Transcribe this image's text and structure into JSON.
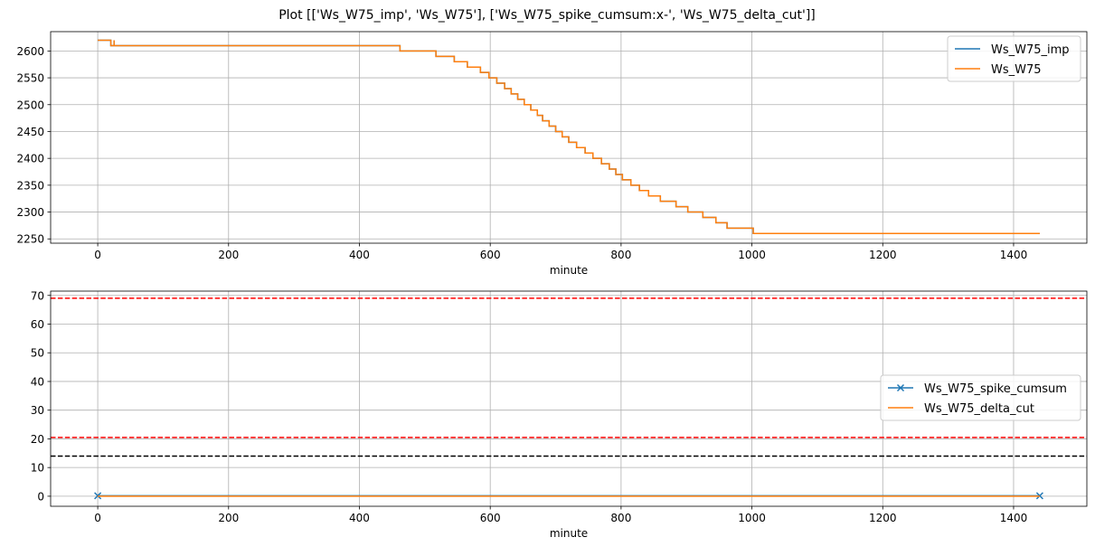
{
  "figure": {
    "title": "Plot [['Ws_W75_imp', 'Ws_W75'], ['Ws_W75_spike_cumsum:x-', 'Ws_W75_delta_cut']]"
  },
  "chart_data": [
    {
      "type": "line",
      "xlabel": "minute",
      "ylabel": "",
      "xlim": [
        -72,
        1512
      ],
      "ylim": [
        2242,
        2636
      ],
      "xticks": [
        0,
        200,
        400,
        600,
        800,
        1000,
        1200,
        1400
      ],
      "yticks": [
        2250,
        2300,
        2350,
        2400,
        2450,
        2500,
        2550,
        2600
      ],
      "grid": true,
      "legend_position": "upper right",
      "series": [
        {
          "name": "Ws_W75_imp",
          "color": "#1f77b4",
          "style": "step",
          "points": [
            [
              0,
              2620
            ],
            [
              20,
              2620
            ],
            [
              20,
              2610
            ],
            [
              25,
              2610
            ],
            [
              25,
              2620
            ],
            [
              25,
              2610
            ],
            [
              462,
              2610
            ],
            [
              462,
              2600
            ],
            [
              517,
              2600
            ],
            [
              517,
              2590
            ],
            [
              545,
              2590
            ],
            [
              545,
              2580
            ],
            [
              565,
              2580
            ],
            [
              565,
              2570
            ],
            [
              585,
              2570
            ],
            [
              585,
              2560
            ],
            [
              598,
              2560
            ],
            [
              598,
              2550
            ],
            [
              610,
              2550
            ],
            [
              610,
              2540
            ],
            [
              622,
              2540
            ],
            [
              622,
              2530
            ],
            [
              632,
              2530
            ],
            [
              632,
              2520
            ],
            [
              642,
              2520
            ],
            [
              642,
              2510
            ],
            [
              652,
              2510
            ],
            [
              652,
              2500
            ],
            [
              662,
              2500
            ],
            [
              662,
              2490
            ],
            [
              672,
              2490
            ],
            [
              672,
              2480
            ],
            [
              680,
              2480
            ],
            [
              680,
              2470
            ],
            [
              690,
              2470
            ],
            [
              690,
              2460
            ],
            [
              700,
              2460
            ],
            [
              700,
              2450
            ],
            [
              710,
              2450
            ],
            [
              710,
              2440
            ],
            [
              720,
              2440
            ],
            [
              720,
              2430
            ],
            [
              732,
              2430
            ],
            [
              732,
              2420
            ],
            [
              745,
              2420
            ],
            [
              745,
              2410
            ],
            [
              757,
              2410
            ],
            [
              757,
              2400
            ],
            [
              770,
              2400
            ],
            [
              770,
              2390
            ],
            [
              782,
              2390
            ],
            [
              782,
              2380
            ],
            [
              792,
              2380
            ],
            [
              792,
              2370
            ],
            [
              802,
              2370
            ],
            [
              802,
              2360
            ],
            [
              815,
              2360
            ],
            [
              815,
              2350
            ],
            [
              828,
              2350
            ],
            [
              828,
              2340
            ],
            [
              842,
              2340
            ],
            [
              842,
              2330
            ],
            [
              860,
              2330
            ],
            [
              860,
              2320
            ],
            [
              884,
              2320
            ],
            [
              884,
              2310
            ],
            [
              902,
              2310
            ],
            [
              902,
              2300
            ],
            [
              925,
              2300
            ],
            [
              925,
              2290
            ],
            [
              945,
              2290
            ],
            [
              945,
              2280
            ],
            [
              962,
              2280
            ],
            [
              962,
              2270
            ],
            [
              1002,
              2270
            ],
            [
              1002,
              2260
            ],
            [
              1440,
              2260
            ]
          ]
        },
        {
          "name": "Ws_W75",
          "color": "#ff7f0e",
          "style": "step",
          "points": [
            [
              0,
              2620
            ],
            [
              20,
              2620
            ],
            [
              20,
              2610
            ],
            [
              25,
              2610
            ],
            [
              25,
              2620
            ],
            [
              25,
              2610
            ],
            [
              462,
              2610
            ],
            [
              462,
              2600
            ],
            [
              517,
              2600
            ],
            [
              517,
              2590
            ],
            [
              545,
              2590
            ],
            [
              545,
              2580
            ],
            [
              565,
              2580
            ],
            [
              565,
              2570
            ],
            [
              585,
              2570
            ],
            [
              585,
              2560
            ],
            [
              598,
              2560
            ],
            [
              598,
              2550
            ],
            [
              610,
              2550
            ],
            [
              610,
              2540
            ],
            [
              622,
              2540
            ],
            [
              622,
              2530
            ],
            [
              632,
              2530
            ],
            [
              632,
              2520
            ],
            [
              642,
              2520
            ],
            [
              642,
              2510
            ],
            [
              652,
              2510
            ],
            [
              652,
              2500
            ],
            [
              662,
              2500
            ],
            [
              662,
              2490
            ],
            [
              672,
              2490
            ],
            [
              672,
              2480
            ],
            [
              680,
              2480
            ],
            [
              680,
              2470
            ],
            [
              690,
              2470
            ],
            [
              690,
              2460
            ],
            [
              700,
              2460
            ],
            [
              700,
              2450
            ],
            [
              710,
              2450
            ],
            [
              710,
              2440
            ],
            [
              720,
              2440
            ],
            [
              720,
              2430
            ],
            [
              732,
              2430
            ],
            [
              732,
              2420
            ],
            [
              745,
              2420
            ],
            [
              745,
              2410
            ],
            [
              757,
              2410
            ],
            [
              757,
              2400
            ],
            [
              770,
              2400
            ],
            [
              770,
              2390
            ],
            [
              782,
              2390
            ],
            [
              782,
              2380
            ],
            [
              792,
              2380
            ],
            [
              792,
              2370
            ],
            [
              802,
              2370
            ],
            [
              802,
              2360
            ],
            [
              815,
              2360
            ],
            [
              815,
              2350
            ],
            [
              828,
              2350
            ],
            [
              828,
              2340
            ],
            [
              842,
              2340
            ],
            [
              842,
              2330
            ],
            [
              860,
              2330
            ],
            [
              860,
              2320
            ],
            [
              884,
              2320
            ],
            [
              884,
              2310
            ],
            [
              902,
              2310
            ],
            [
              902,
              2300
            ],
            [
              925,
              2300
            ],
            [
              925,
              2290
            ],
            [
              945,
              2290
            ],
            [
              945,
              2280
            ],
            [
              962,
              2280
            ],
            [
              962,
              2270
            ],
            [
              1002,
              2270
            ],
            [
              1002,
              2260
            ],
            [
              1440,
              2260
            ]
          ]
        }
      ]
    },
    {
      "type": "line",
      "xlabel": "minute",
      "ylabel": "",
      "xlim": [
        -72,
        1512
      ],
      "ylim": [
        -3.5,
        71.5
      ],
      "xticks": [
        0,
        200,
        400,
        600,
        800,
        1000,
        1200,
        1400
      ],
      "yticks": [
        0,
        10,
        20,
        30,
        40,
        50,
        60,
        70
      ],
      "grid": true,
      "legend_position": "center right",
      "series": [
        {
          "name": "Ws_W75_spike_cumsum",
          "color": "#1f77b4",
          "style": "line-x-markers",
          "x": [
            0,
            1440
          ],
          "y": [
            0,
            0
          ]
        },
        {
          "name": "Ws_W75_delta_cut",
          "color": "#ff7f0e",
          "style": "line",
          "x": [
            0,
            1440
          ],
          "y": [
            0,
            0
          ]
        }
      ],
      "hlines": [
        {
          "y": 69,
          "color": "#ff0000",
          "dash": true
        },
        {
          "y": 20.5,
          "color": "#ff0000",
          "dash": true
        },
        {
          "y": 14,
          "color": "#000000",
          "dash": true
        }
      ]
    }
  ]
}
